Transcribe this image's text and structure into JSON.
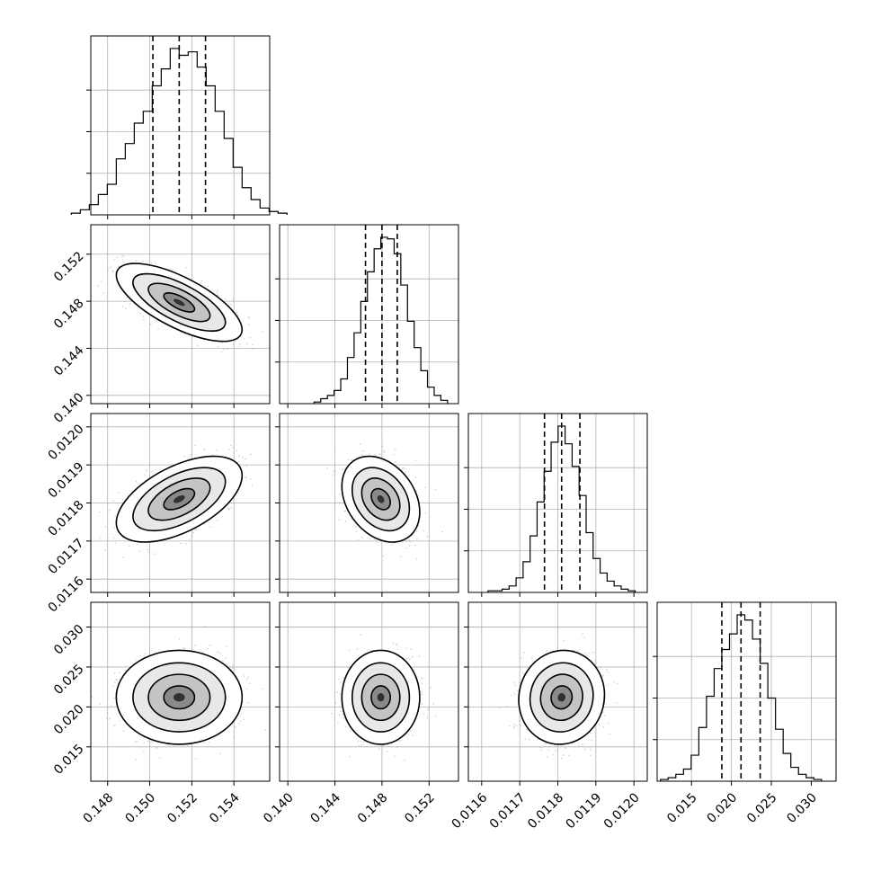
{
  "chart_data": {
    "type": "corner",
    "parameters": 4,
    "colors": {
      "line": "#000000",
      "grid": "#b0b0b0",
      "scatter": "#a0a0a0",
      "fill": "#808080"
    },
    "grid": true,
    "axes": [
      {
        "range": [
          0.1472,
          0.1557
        ],
        "ticks": [
          0.148,
          0.15,
          0.152,
          0.154
        ],
        "tick_labels": [
          "0.148",
          "0.150",
          "0.152",
          "0.154"
        ],
        "quantiles": [
          0.15015,
          0.1514,
          0.15265
        ],
        "mean": 0.1514,
        "sd": 0.00122
      },
      {
        "range": [
          0.1393,
          0.1545
        ],
        "ticks": [
          0.14,
          0.144,
          0.148,
          0.152
        ],
        "tick_labels": [
          "0.140",
          "0.144",
          "0.148",
          "0.152"
        ],
        "quantiles": [
          0.1466,
          0.148,
          0.1493
        ],
        "mean": 0.1479,
        "sd": 0.00135
      },
      {
        "range": [
          0.011565,
          0.012035
        ],
        "ticks": [
          0.0116,
          0.0117,
          0.0118,
          0.0119,
          0.012
        ],
        "tick_labels": [
          "0.0116",
          "0.0117",
          "0.0118",
          "0.0119",
          "0.0120"
        ],
        "quantiles": [
          0.011765,
          0.01181,
          0.011858
        ],
        "mean": 0.01181,
        "sd": 4.6e-05
      },
      {
        "range": [
          0.0107,
          0.0331
        ],
        "ticks": [
          0.015,
          0.02,
          0.025,
          0.03
        ],
        "tick_labels": [
          "0.015",
          "0.020",
          "0.025",
          "0.030"
        ],
        "quantiles": [
          0.0188,
          0.0212,
          0.0236
        ],
        "mean": 0.0212,
        "sd": 0.0024
      }
    ],
    "histogram_counts": [
      [
        1,
        3,
        6,
        12,
        18,
        33,
        42,
        54,
        61,
        76,
        86,
        98,
        94,
        96,
        87,
        76,
        61,
        45,
        28,
        16,
        9,
        4,
        2,
        1
      ],
      [
        1,
        3,
        5,
        8,
        15,
        28,
        43,
        62,
        80,
        94,
        101,
        100,
        91,
        72,
        50,
        34,
        20,
        10,
        5,
        2
      ],
      [
        1,
        1,
        2,
        4,
        9,
        19,
        35,
        56,
        75,
        93,
        103,
        92,
        78,
        60,
        37,
        21,
        12,
        7,
        4,
        2,
        1
      ],
      [
        1,
        2,
        4,
        7,
        15,
        31,
        49,
        65,
        76,
        85,
        96,
        93,
        82,
        68,
        48,
        30,
        16,
        8,
        4,
        2,
        1
      ]
    ],
    "correlations": [
      {
        "x": 0,
        "y": 1,
        "rho": -0.7
      },
      {
        "x": 0,
        "y": 2,
        "rho": 0.55
      },
      {
        "x": 1,
        "y": 2,
        "rho": -0.3
      },
      {
        "x": 0,
        "y": 3,
        "rho": 0.0
      },
      {
        "x": 1,
        "y": 3,
        "rho": 0.0
      },
      {
        "x": 2,
        "y": 3,
        "rho": 0.05
      }
    ]
  }
}
